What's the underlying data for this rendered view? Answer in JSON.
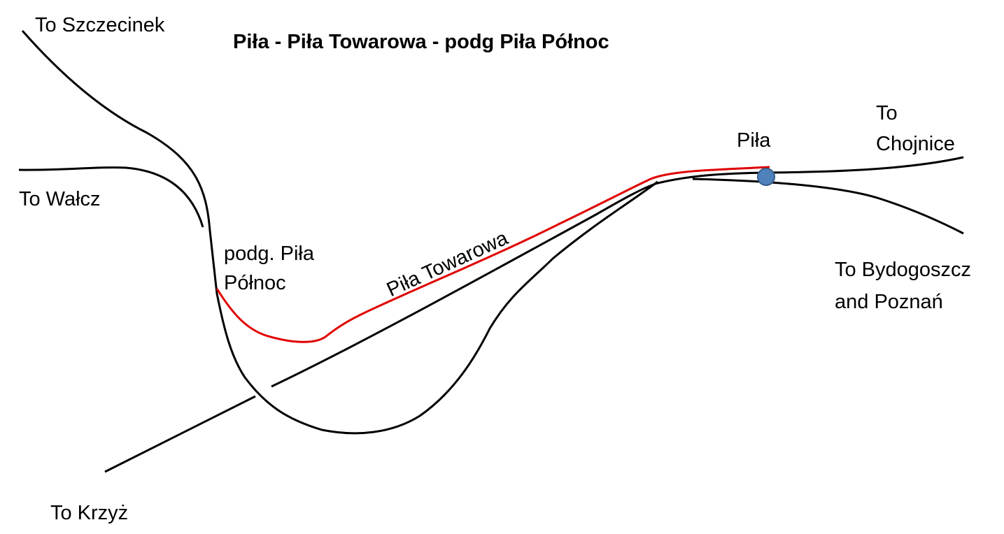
{
  "title": "Piła - Piła Towarowa - podg Piła Północ",
  "labels": {
    "szczecinek": "To Szczecinek",
    "walcz": "To Wałcz",
    "podg_line1": "podg. Piła",
    "podg_line2": "Północ",
    "towarowa": "Piła Towarowa",
    "pila": "Piła",
    "chojnice_line1": "To",
    "chojnice_line2": "Chojnice",
    "bydgoszcz_line1": "To Bydogoszcz",
    "bydgoszcz_line2": "and Poznań",
    "krzyz": "To Krzyż"
  },
  "colors": {
    "line": "#000000",
    "highlight_route": "#e00000",
    "station_dot": "#4f81bd",
    "station_dot_border": "#385d8a"
  }
}
